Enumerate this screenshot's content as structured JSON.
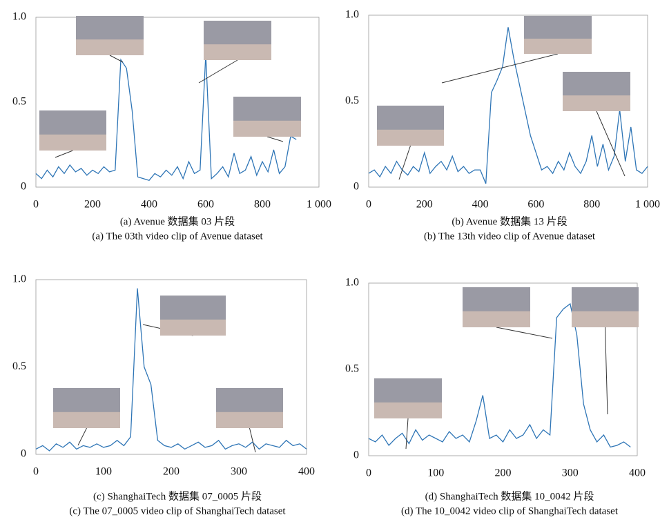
{
  "chart_data": [
    {
      "type": "line",
      "title": "(a) Avenue 数据集 03 片段",
      "subtitle": "(a) The 03th video clip of Avenue dataset",
      "color": "#2e75b6",
      "xlim": [
        0,
        1000
      ],
      "ylim": [
        0,
        1
      ],
      "xticks": [
        0,
        200,
        400,
        600,
        800,
        {
          "value": 1000,
          "label": "1 000"
        }
      ],
      "yticks": [
        0,
        0.5,
        {
          "value": 1,
          "label": "1.0"
        }
      ],
      "x": [
        0,
        20,
        40,
        60,
        80,
        100,
        120,
        140,
        160,
        180,
        200,
        220,
        240,
        260,
        280,
        300,
        320,
        340,
        360,
        380,
        400,
        420,
        440,
        460,
        480,
        500,
        520,
        540,
        560,
        580,
        600,
        620,
        640,
        660,
        680,
        700,
        720,
        740,
        760,
        780,
        800,
        820,
        840,
        860,
        880,
        900,
        920
      ],
      "values": [
        0.08,
        0.05,
        0.1,
        0.06,
        0.12,
        0.08,
        0.13,
        0.09,
        0.11,
        0.07,
        0.1,
        0.08,
        0.12,
        0.09,
        0.1,
        0.75,
        0.7,
        0.45,
        0.06,
        0.05,
        0.04,
        0.08,
        0.06,
        0.1,
        0.07,
        0.12,
        0.05,
        0.15,
        0.08,
        0.1,
        0.78,
        0.05,
        0.08,
        0.12,
        0.06,
        0.2,
        0.08,
        0.1,
        0.18,
        0.07,
        0.15,
        0.09,
        0.22,
        0.08,
        0.12,
        0.3,
        0.28
      ]
    },
    {
      "type": "line",
      "title": "(b) Avenue 数据集 13 片段",
      "subtitle": "(b) The 13th video clip of Avenue dataset",
      "color": "#2e75b6",
      "xlim": [
        0,
        1000
      ],
      "ylim": [
        0,
        1
      ],
      "xticks": [
        0,
        200,
        400,
        600,
        800,
        {
          "value": 1000,
          "label": "1 000"
        }
      ],
      "yticks": [
        0,
        0.5,
        {
          "value": 1,
          "label": "1.0"
        }
      ],
      "x": [
        0,
        20,
        40,
        60,
        80,
        100,
        120,
        140,
        160,
        180,
        200,
        220,
        240,
        260,
        280,
        300,
        320,
        340,
        360,
        380,
        400,
        420,
        440,
        460,
        480,
        500,
        520,
        540,
        560,
        580,
        600,
        620,
        640,
        660,
        680,
        700,
        720,
        740,
        760,
        780,
        800,
        820,
        840,
        860,
        880,
        900,
        920,
        940,
        960,
        980,
        1000
      ],
      "values": [
        0.08,
        0.1,
        0.06,
        0.12,
        0.08,
        0.15,
        0.1,
        0.07,
        0.12,
        0.09,
        0.2,
        0.08,
        0.12,
        0.15,
        0.1,
        0.18,
        0.09,
        0.12,
        0.08,
        0.1,
        0.1,
        0.02,
        0.55,
        0.62,
        0.7,
        0.93,
        0.75,
        0.6,
        0.45,
        0.3,
        0.2,
        0.1,
        0.12,
        0.08,
        0.15,
        0.1,
        0.2,
        0.12,
        0.08,
        0.15,
        0.3,
        0.12,
        0.25,
        0.1,
        0.18,
        0.45,
        0.15,
        0.35,
        0.1,
        0.08,
        0.12
      ]
    },
    {
      "type": "line",
      "title": "(c) ShanghaiTech 数据集 07_0005 片段",
      "subtitle": "(c) The 07_0005 video clip of ShanghaiTech dataset",
      "color": "#2e75b6",
      "xlim": [
        0,
        400
      ],
      "ylim": [
        0,
        1
      ],
      "xticks": [
        0,
        100,
        200,
        300,
        400
      ],
      "yticks": [
        0,
        0.5,
        {
          "value": 1,
          "label": "1.0"
        }
      ],
      "x": [
        0,
        10,
        20,
        30,
        40,
        50,
        60,
        70,
        80,
        90,
        100,
        110,
        120,
        130,
        140,
        150,
        160,
        170,
        180,
        190,
        200,
        210,
        220,
        230,
        240,
        250,
        260,
        270,
        280,
        290,
        300,
        310,
        320,
        330,
        340,
        350,
        360,
        370,
        380,
        390,
        400
      ],
      "values": [
        0.03,
        0.05,
        0.02,
        0.06,
        0.04,
        0.07,
        0.03,
        0.05,
        0.04,
        0.06,
        0.04,
        0.05,
        0.08,
        0.05,
        0.1,
        0.95,
        0.5,
        0.4,
        0.08,
        0.05,
        0.04,
        0.06,
        0.03,
        0.05,
        0.07,
        0.04,
        0.05,
        0.08,
        0.03,
        0.05,
        0.06,
        0.04,
        0.07,
        0.03,
        0.06,
        0.05,
        0.04,
        0.08,
        0.05,
        0.06,
        0.03
      ]
    },
    {
      "type": "line",
      "title": "(d) ShanghaiTech 数据集 10_0042 片段",
      "subtitle": "(d) The 10_0042 video clip of ShanghaiTech dataset",
      "color": "#2e75b6",
      "xlim": [
        0,
        400
      ],
      "ylim": [
        0,
        1
      ],
      "xticks": [
        0,
        100,
        200,
        300,
        400
      ],
      "yticks": [
        0,
        0.5,
        {
          "value": 1,
          "label": "1.0"
        }
      ],
      "x": [
        0,
        10,
        20,
        30,
        40,
        50,
        60,
        70,
        80,
        90,
        100,
        110,
        120,
        130,
        140,
        150,
        160,
        170,
        180,
        190,
        200,
        210,
        220,
        230,
        240,
        250,
        260,
        270,
        280,
        290,
        300,
        310,
        320,
        330,
        340,
        350,
        360,
        370,
        380,
        390
      ],
      "values": [
        0.1,
        0.08,
        0.12,
        0.06,
        0.1,
        0.13,
        0.07,
        0.15,
        0.09,
        0.12,
        0.1,
        0.08,
        0.14,
        0.1,
        0.12,
        0.08,
        0.2,
        0.35,
        0.1,
        0.12,
        0.08,
        0.15,
        0.1,
        0.12,
        0.18,
        0.1,
        0.15,
        0.12,
        0.8,
        0.85,
        0.88,
        0.7,
        0.3,
        0.15,
        0.08,
        0.12,
        0.05,
        0.06,
        0.08,
        0.05
      ]
    }
  ]
}
